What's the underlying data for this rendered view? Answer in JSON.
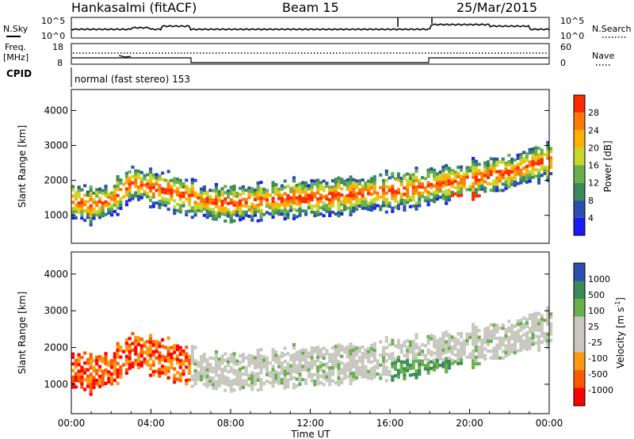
{
  "header": {
    "station": "Hankasalmi (fitACF)",
    "beam": "Beam 15",
    "date": "25/Mar/2015"
  },
  "noise_panel": {
    "left_label": "N.Sky",
    "right_label": "N.Search",
    "left_ticks": [
      "10^5",
      "10^0"
    ],
    "right_ticks": [
      "10^5",
      "10^0"
    ]
  },
  "freq_panel": {
    "left_label_1": "Freq.",
    "left_label_2": "[MHz]",
    "right_label": "Nave",
    "left_ticks": [
      "18",
      "8"
    ],
    "right_ticks": [
      "60",
      "0"
    ]
  },
  "cpid": {
    "label": "CPID",
    "mode": "normal (fast stereo) 153"
  },
  "colors": {
    "power_scale": [
      "#1a1aff",
      "#2a4fb0",
      "#3a8a5a",
      "#6ab04a",
      "#c8d82a",
      "#ffb000",
      "#ff7a00",
      "#ff2a00"
    ],
    "velocity_scale": [
      "#ff0000",
      "#ff5a00",
      "#ff9a10",
      "#c8c8c0",
      "#c8c8c0",
      "#6ab04a",
      "#3a8a5a",
      "#2a4fb0"
    ]
  },
  "chart_data": [
    {
      "type": "heatmap",
      "title": "",
      "xlabel": "Time UT",
      "ylabel": "Slant Range [km]",
      "ylim": [
        200,
        4600
      ],
      "y_ticks": [
        "4000",
        "3000",
        "2000",
        "1000"
      ],
      "x_ticks": [
        "00:00",
        "04:00",
        "08:00",
        "12:00",
        "16:00",
        "20:00",
        "00:00"
      ],
      "colorbar_label": "Power [dB]",
      "colorbar_ticks": [
        "28",
        "24",
        "20",
        "16",
        "12",
        "8",
        "4"
      ],
      "bands": [
        {
          "name": "main",
          "x": [
            0,
            1,
            2,
            3,
            4,
            5,
            6,
            7,
            8,
            9,
            10,
            11,
            12,
            13,
            14,
            15,
            16,
            17,
            18,
            19,
            20,
            21,
            22,
            23,
            24
          ],
          "center_km": [
            1350,
            1250,
            1400,
            1900,
            1750,
            1600,
            1450,
            1300,
            1300,
            1350,
            1400,
            1450,
            1450,
            1500,
            1550,
            1600,
            1650,
            1700,
            1800,
            1900,
            2000,
            2100,
            2200,
            2400,
            2550
          ]
        }
      ]
    },
    {
      "type": "heatmap",
      "title": "",
      "xlabel": "Time UT",
      "ylabel": "Slant Range [km]",
      "ylim": [
        200,
        4600
      ],
      "y_ticks": [
        "4000",
        "3000",
        "2000",
        "1000"
      ],
      "x_ticks": [
        "00:00",
        "04:00",
        "08:00",
        "12:00",
        "16:00",
        "20:00",
        "00:00"
      ],
      "colorbar_label": "Velocity [m s",
      "colorbar_superscript": "-1",
      "colorbar_label_end": "]",
      "colorbar_ticks": [
        "1000",
        "500",
        "100",
        "25",
        "-25",
        "-100",
        "-500",
        "-1000"
      ]
    }
  ]
}
